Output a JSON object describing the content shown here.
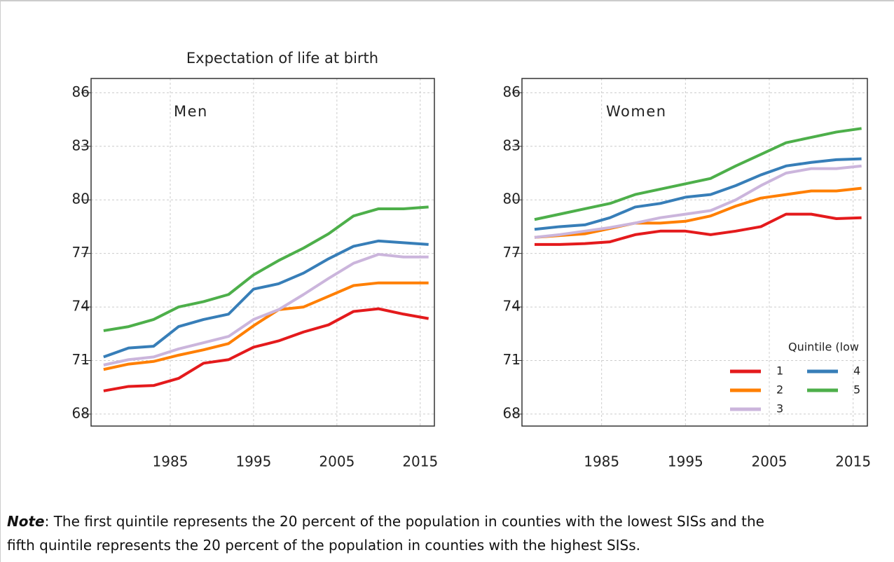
{
  "title": "Expectation of life at birth",
  "chart_data": [
    {
      "type": "line",
      "title": "Men",
      "x": [
        1977,
        1980,
        1983,
        1986,
        1989,
        1992,
        1995,
        1998,
        2001,
        2004,
        2007,
        2010,
        2013,
        2016
      ],
      "series": [
        {
          "name": "1",
          "color": "#e41a1c",
          "values": [
            69.3,
            69.55,
            69.6,
            70.0,
            70.85,
            71.05,
            71.75,
            72.1,
            72.6,
            73.0,
            73.75,
            73.9,
            73.6,
            73.35
          ]
        },
        {
          "name": "2",
          "color": "#ff7f00",
          "values": [
            70.5,
            70.8,
            70.95,
            71.3,
            71.6,
            71.95,
            72.95,
            73.85,
            74.0,
            74.6,
            75.2,
            75.35,
            75.35,
            75.35
          ]
        },
        {
          "name": "3",
          "color": "#cbb5dc",
          "values": [
            70.75,
            71.05,
            71.2,
            71.65,
            72.0,
            72.35,
            73.3,
            73.85,
            74.7,
            75.6,
            76.45,
            76.95,
            76.8,
            76.8
          ]
        },
        {
          "name": "4",
          "color": "#377eb8",
          "values": [
            71.2,
            71.7,
            71.8,
            72.9,
            73.3,
            73.6,
            75.0,
            75.3,
            75.9,
            76.7,
            77.4,
            77.7,
            77.6,
            77.5
          ]
        },
        {
          "name": "5",
          "color": "#4daf4a",
          "values": [
            72.67,
            72.9,
            73.3,
            74.0,
            74.3,
            74.7,
            75.8,
            76.6,
            77.3,
            78.1,
            79.1,
            79.5,
            79.5,
            79.6
          ]
        }
      ],
      "xlim": [
        1975.5,
        2016.7
      ],
      "xticks": [
        1985,
        1995,
        2005,
        2015
      ],
      "ylim": [
        67.33,
        86.8
      ],
      "yticks": [
        68,
        71,
        74,
        77,
        80,
        83,
        86
      ],
      "grid": true
    },
    {
      "type": "line",
      "title": "Women",
      "x": [
        1977,
        1980,
        1983,
        1986,
        1989,
        1992,
        1995,
        1998,
        2001,
        2004,
        2007,
        2010,
        2013,
        2016
      ],
      "series": [
        {
          "name": "1",
          "color": "#e41a1c",
          "values": [
            77.5,
            77.5,
            77.55,
            77.65,
            78.05,
            78.25,
            78.25,
            78.05,
            78.25,
            78.5,
            79.2,
            79.2,
            78.95,
            79.0
          ]
        },
        {
          "name": "2",
          "color": "#ff7f00",
          "values": [
            77.9,
            78.0,
            78.1,
            78.4,
            78.7,
            78.7,
            78.8,
            79.1,
            79.65,
            80.1,
            80.3,
            80.5,
            80.5,
            80.65
          ]
        },
        {
          "name": "3",
          "color": "#cbb5dc",
          "values": [
            77.9,
            78.05,
            78.25,
            78.45,
            78.7,
            79.0,
            79.2,
            79.4,
            80.0,
            80.8,
            81.5,
            81.75,
            81.75,
            81.9
          ]
        },
        {
          "name": "4",
          "color": "#377eb8",
          "values": [
            78.35,
            78.5,
            78.6,
            79.0,
            79.6,
            79.8,
            80.15,
            80.3,
            80.8,
            81.4,
            81.9,
            82.1,
            82.25,
            82.3
          ]
        },
        {
          "name": "5",
          "color": "#4daf4a",
          "values": [
            78.9,
            79.2,
            79.5,
            79.8,
            80.3,
            80.6,
            80.9,
            81.2,
            81.9,
            82.55,
            83.2,
            83.5,
            83.8,
            84.0
          ]
        }
      ],
      "xlim": [
        1975.5,
        2016.7
      ],
      "xticks": [
        1985,
        1995,
        2005,
        2015
      ],
      "ylim": [
        67.33,
        86.8
      ],
      "yticks": [
        68,
        71,
        74,
        77,
        80,
        83,
        86
      ],
      "grid": true,
      "legend": "lower right",
      "legend_title": "Quintile (low"
    }
  ],
  "note": {
    "label": "Note",
    "lines": [
      ": The first quintile represents the 20 percent of the population in counties with the lowest SISs and the",
      "fifth quintile represents the 20 percent of the population in counties with the highest SISs."
    ]
  }
}
